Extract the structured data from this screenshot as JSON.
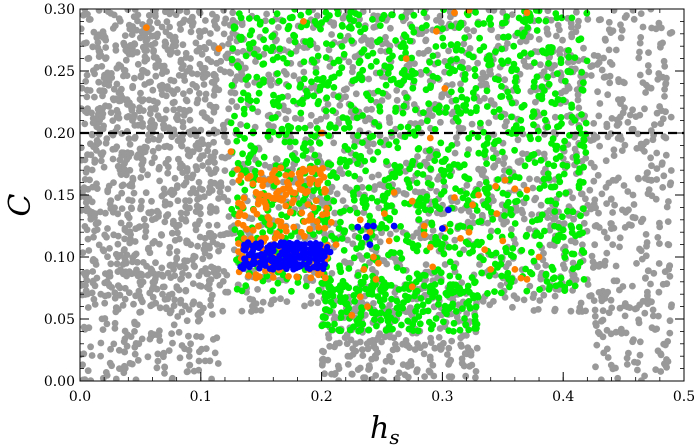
{
  "chart_data": {
    "type": "scatter",
    "title": "",
    "xlabel": "h",
    "xlabel_subscript": "s",
    "ylabel": "C",
    "xlim": [
      0.0,
      0.5
    ],
    "ylim": [
      0.0,
      0.3
    ],
    "x_ticks": [
      "0.0",
      "0.1",
      "0.2",
      "0.3",
      "0.4",
      "0.5"
    ],
    "y_ticks": [
      "0.00",
      "0.05",
      "0.10",
      "0.15",
      "0.20",
      "0.25",
      "0.30"
    ],
    "reference_line": {
      "y": 0.2,
      "style": "dashed",
      "color": "#000000"
    },
    "grid": false,
    "legend": "none",
    "series": [
      {
        "color": "#999999",
        "description_regions": [
          {
            "x": [
              0.005,
              0.425
            ],
            "y": [
              0.055,
              0.3
            ]
          },
          {
            "x": [
              0.425,
              0.49
            ],
            "y": [
              0.0,
              0.3
            ]
          },
          {
            "x": [
              0.0,
              0.115
            ],
            "y": [
              0.0,
              0.3
            ]
          },
          {
            "x": [
              0.2,
              0.33
            ],
            "y": [
              0.0,
              0.055
            ]
          }
        ]
      },
      {
        "color": "#00ee00",
        "description_regions": [
          {
            "x": [
              0.125,
              0.42
            ],
            "y": [
              0.07,
              0.3
            ]
          },
          {
            "x": [
              0.2,
              0.33
            ],
            "y": [
              0.04,
              0.08
            ]
          }
        ]
      },
      {
        "color": "#ff7f00",
        "description_regions": [
          {
            "x": [
              0.13,
              0.205
            ],
            "y": [
              0.082,
              0.172
            ]
          }
        ],
        "points": [
          [
            0.055,
            0.285
          ],
          [
            0.115,
            0.268
          ],
          [
            0.185,
            0.29
          ],
          [
            0.295,
            0.282
          ],
          [
            0.31,
            0.297
          ],
          [
            0.322,
            0.299
          ],
          [
            0.37,
            0.297
          ],
          [
            0.27,
            0.26
          ],
          [
            0.302,
            0.236
          ],
          [
            0.125,
            0.185
          ],
          [
            0.29,
            0.196
          ],
          [
            0.2,
            0.2
          ],
          [
            0.26,
            0.152
          ],
          [
            0.275,
            0.145
          ],
          [
            0.31,
            0.148
          ],
          [
            0.315,
            0.115
          ],
          [
            0.33,
            0.15
          ],
          [
            0.345,
            0.135
          ],
          [
            0.335,
            0.106
          ],
          [
            0.285,
            0.118
          ],
          [
            0.285,
            0.125
          ],
          [
            0.29,
            0.108
          ],
          [
            0.24,
            0.12
          ],
          [
            0.243,
            0.1
          ],
          [
            0.247,
            0.095
          ],
          [
            0.256,
            0.113
          ],
          [
            0.232,
            0.13
          ],
          [
            0.252,
            0.135
          ],
          [
            0.302,
            0.123
          ],
          [
            0.322,
            0.12
          ],
          [
            0.35,
            0.113
          ],
          [
            0.36,
            0.09
          ],
          [
            0.365,
            0.083
          ],
          [
            0.37,
            0.082
          ],
          [
            0.34,
            0.09
          ],
          [
            0.275,
            0.076
          ],
          [
            0.292,
            0.092
          ],
          [
            0.232,
            0.068
          ],
          [
            0.238,
            0.06
          ],
          [
            0.225,
            0.053
          ],
          [
            0.245,
            0.082
          ],
          [
            0.235,
            0.09
          ],
          [
            0.38,
            0.1
          ],
          [
            0.37,
            0.154
          ],
          [
            0.36,
            0.155
          ],
          [
            0.344,
            0.157
          ],
          [
            0.352,
            0.162
          ],
          [
            0.325,
            0.142
          ],
          [
            0.208,
            0.128
          ],
          [
            0.212,
            0.11
          ]
        ]
      },
      {
        "color": "#0000ff",
        "description_regions": [
          {
            "x": [
              0.135,
              0.205
            ],
            "y": [
              0.09,
              0.112
            ]
          }
        ],
        "points": [
          [
            0.133,
            0.092
          ],
          [
            0.15,
            0.102
          ],
          [
            0.16,
            0.105
          ],
          [
            0.175,
            0.108
          ],
          [
            0.19,
            0.1
          ],
          [
            0.2,
            0.098
          ],
          [
            0.207,
            0.104
          ],
          [
            0.23,
            0.124
          ],
          [
            0.238,
            0.125
          ],
          [
            0.237,
            0.116
          ],
          [
            0.243,
            0.125
          ],
          [
            0.24,
            0.11
          ],
          [
            0.26,
            0.125
          ],
          [
            0.3,
            0.123
          ],
          [
            0.305,
            0.138
          ]
        ]
      }
    ]
  }
}
